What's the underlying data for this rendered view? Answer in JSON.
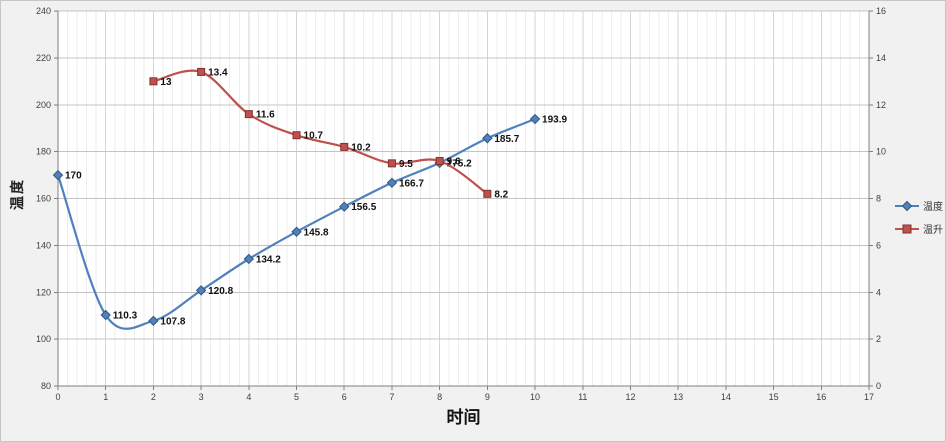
{
  "chart_data": {
    "type": "line",
    "title": "",
    "xlabel": "时间",
    "ylabel_left": "温度",
    "x_range": [
      0,
      17
    ],
    "x_tick_step": 1,
    "x_minor_step": 0.2,
    "left_axis": {
      "min": 80,
      "max": 240,
      "step": 20
    },
    "right_axis": {
      "min": 0,
      "max": 16,
      "step": 2
    },
    "grid": true,
    "legend_position": "right",
    "colors": {
      "series1": "#4f81bd",
      "series2": "#c0504d"
    },
    "series": [
      {
        "name": "温度",
        "axis": "left",
        "color": "#4f81bd",
        "marker": "diamond",
        "marker_stroke": "#36567f",
        "x": [
          0,
          1,
          2,
          3,
          4,
          5,
          6,
          7,
          8,
          9,
          10
        ],
        "values": [
          170,
          110.3,
          107.8,
          120.8,
          134.2,
          145.8,
          156.5,
          166.7,
          175.2,
          185.7,
          193.9
        ],
        "labels": [
          "170",
          "110.3",
          "107.8",
          "120.8",
          "134.2",
          "145.8",
          "156.5",
          "166.7",
          "175.2",
          "185.7",
          "193.9"
        ]
      },
      {
        "name": "温升",
        "axis": "right",
        "color": "#c0504d",
        "marker": "square",
        "marker_stroke": "#7f3330",
        "x": [
          2,
          3,
          4,
          5,
          6,
          7,
          8,
          9
        ],
        "values": [
          13,
          13.4,
          11.6,
          10.7,
          10.2,
          9.5,
          9.6,
          8.2
        ],
        "labels": [
          "13",
          "13.4",
          "11.6",
          "10.7",
          "10.2",
          "9.5",
          "9.6",
          "8.2"
        ]
      }
    ]
  }
}
